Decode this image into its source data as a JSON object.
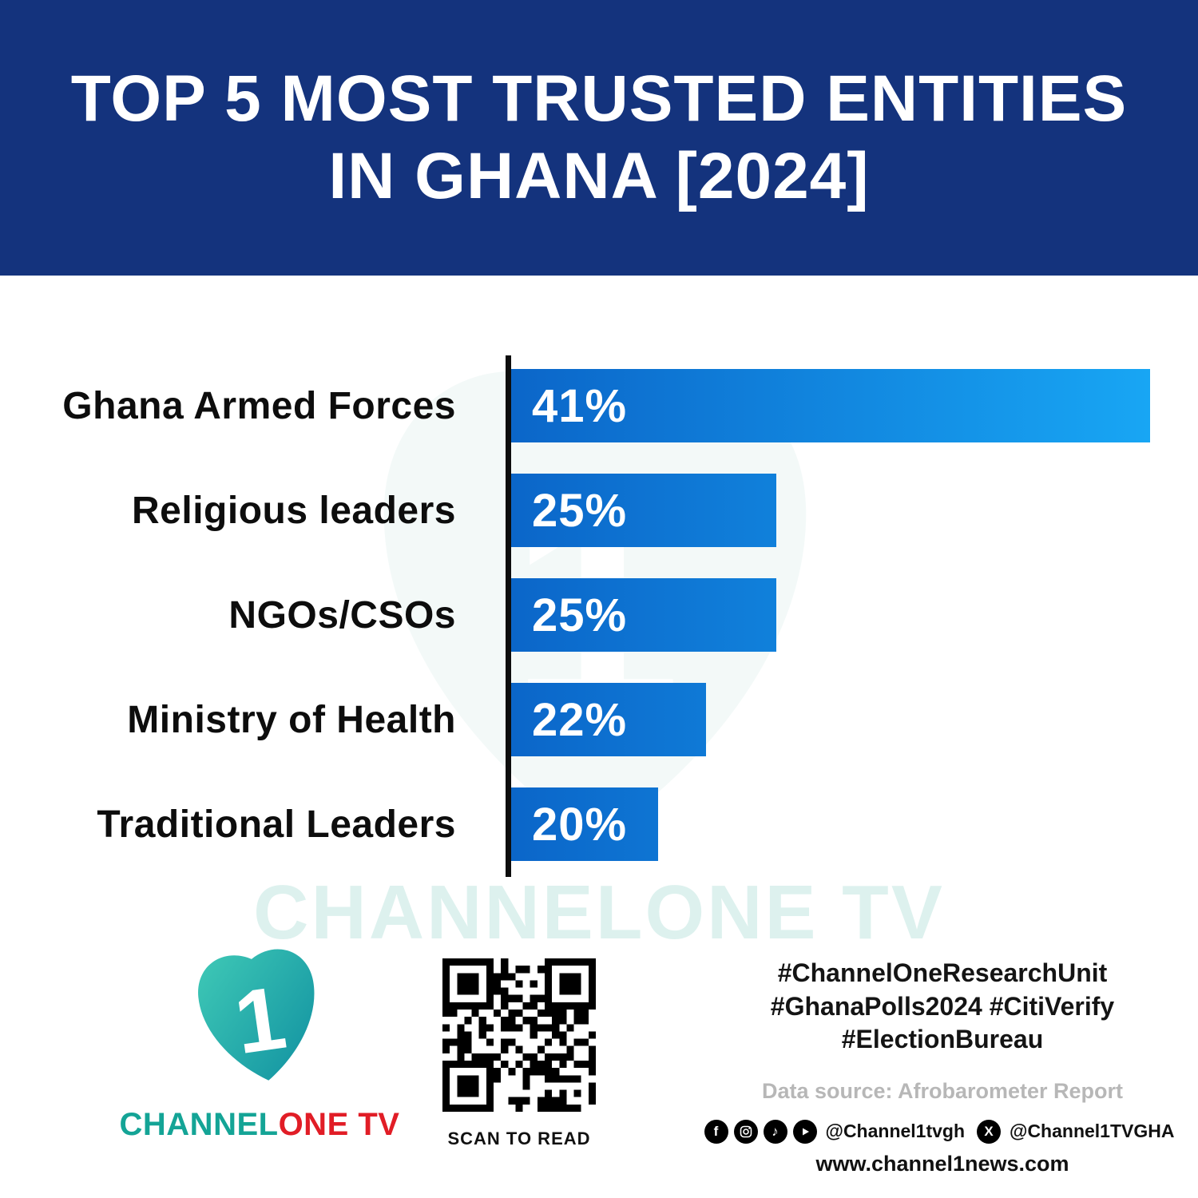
{
  "header": {
    "title": "TOP 5 MOST TRUSTED ENTITIES IN GHANA [2024]",
    "bg_color": "#14337d"
  },
  "chart_data": {
    "type": "bar",
    "orientation": "horizontal",
    "title": "Top 5 Most Trusted Entities in Ghana [2024]",
    "categories": [
      "Ghana Armed Forces",
      "Religious leaders",
      "NGOs/CSOs",
      "Ministry of Health",
      "Traditional Leaders"
    ],
    "values": [
      41,
      25,
      25,
      22,
      20
    ],
    "value_labels": [
      "41%",
      "25%",
      "25%",
      "22%",
      "20%"
    ],
    "unit": "percent",
    "xlabel": "",
    "ylabel": "",
    "grid": false,
    "legend": false,
    "bar_display_widths_pct": [
      100,
      41.5,
      41.5,
      30.5,
      23
    ],
    "bar_gradient": [
      "#0b66c9",
      "#18a6f4"
    ],
    "axis_color": "#0d0d0d",
    "label_color": "#0d0d0d",
    "value_label_color": "#ffffff"
  },
  "watermark": {
    "text": "CHANNELONE TV"
  },
  "footer": {
    "logo": {
      "brand_part1": "CHANNEL",
      "brand_part2": "ONE",
      "brand_part3": " TV",
      "teal": "#14a496",
      "red": "#e11d26",
      "numeral": "1"
    },
    "qr_caption": "SCAN TO READ",
    "hashtags": [
      "#ChannelOneResearchUnit",
      "#GhanaPolls2024 #CitiVerify",
      "#ElectionBureau"
    ],
    "data_source": "Data source: Afrobarometer Report",
    "social": {
      "icons": [
        "facebook-icon",
        "instagram-icon",
        "tiktok-icon",
        "youtube-icon",
        "x-icon"
      ],
      "handle1": "@Channel1tvgh",
      "x_handle": "@Channel1TVGHA"
    },
    "website": "www.channel1news.com"
  }
}
